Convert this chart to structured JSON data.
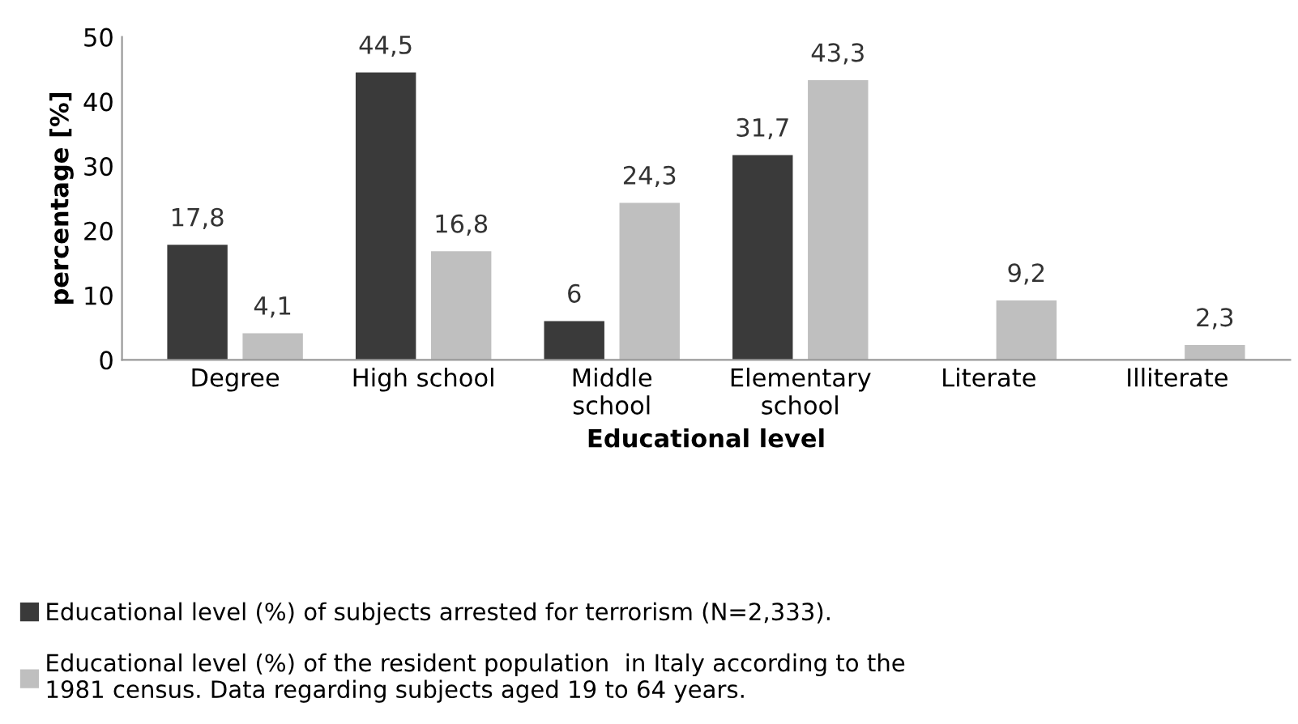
{
  "chart_data": {
    "type": "bar",
    "xlabel": "Educational level",
    "ylabel": "percentage [%]",
    "categories": [
      "Degree",
      "High school",
      "Middle school",
      "Elementary school",
      "Literate",
      "Illiterate"
    ],
    "series": [
      {
        "name": "Educational level (%) of subjects arrested for terrorism (N=2,333).",
        "color": "#3a3a3a",
        "values": [
          17.8,
          44.5,
          6,
          31.7,
          null,
          null
        ],
        "value_labels": [
          "17,8",
          "44,5",
          "6",
          "31,7",
          null,
          null
        ]
      },
      {
        "name": "Educational level (%) of the resident population  in Italy according to the 1981 census. Data regarding subjects aged 19 to 64 years.",
        "color": "#bfbfbf",
        "values": [
          4.1,
          16.8,
          24.3,
          43.3,
          9.2,
          2.3
        ],
        "value_labels": [
          "4,1",
          "16,8",
          "24,3",
          "43,3",
          "9,2",
          "2,3"
        ]
      }
    ],
    "ylim": [
      0,
      50
    ],
    "yticks": [
      0,
      10,
      20,
      30,
      40,
      50
    ],
    "grid": false,
    "legend": "bottom"
  }
}
